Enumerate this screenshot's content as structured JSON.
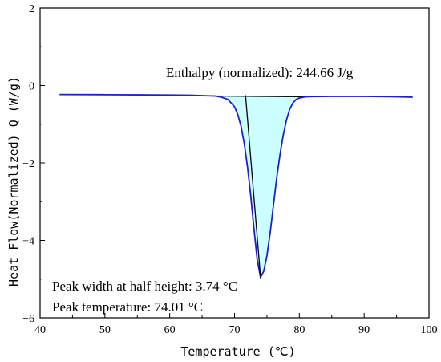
{
  "chart_data": {
    "type": "line",
    "xlabel": "Temperature (℃)",
    "ylabel": "Heat Flow(Normalized) Q (W/g)",
    "xlim": [
      40,
      100
    ],
    "ylim": [
      -6,
      2
    ],
    "xticks": [
      40,
      50,
      60,
      70,
      80,
      90,
      100
    ],
    "yticks": [
      -6,
      -4,
      -2,
      0,
      2
    ],
    "minor_ticks": true,
    "grid": false,
    "legend": "none",
    "series": [
      {
        "color": "#1f1fcc",
        "x": [
          43,
          50,
          55,
          60,
          63,
          65,
          67,
          68,
          69,
          70,
          70.5,
          71,
          71.5,
          72,
          72.5,
          73,
          73.5,
          74.01,
          74.5,
          75,
          75.5,
          76,
          76.5,
          77,
          77.5,
          78,
          78.5,
          79,
          79.5,
          80,
          81,
          82,
          85,
          90,
          95,
          97.5
        ],
        "y": [
          -0.23,
          -0.235,
          -0.24,
          -0.245,
          -0.25,
          -0.26,
          -0.27,
          -0.3,
          -0.36,
          -0.55,
          -0.75,
          -1.05,
          -1.5,
          -2.1,
          -2.85,
          -3.7,
          -4.5,
          -4.95,
          -4.8,
          -4.4,
          -3.8,
          -3.1,
          -2.4,
          -1.8,
          -1.3,
          -0.9,
          -0.62,
          -0.45,
          -0.36,
          -0.32,
          -0.29,
          -0.285,
          -0.28,
          -0.28,
          -0.29,
          -0.3
        ]
      }
    ],
    "baseline": {
      "color": "#000000",
      "x": [
        66.5,
        81
      ],
      "y": [
        -0.27,
        -0.29
      ]
    },
    "shaded_region": {
      "fill": "#ccffff",
      "x_range": [
        66.5,
        81
      ]
    },
    "tangent_line": {
      "color": "#000000",
      "x": [
        71.7,
        74.01
      ],
      "y": [
        -0.25,
        -4.95
      ]
    },
    "annotations": [
      {
        "text": "Enthalpy (normalized): 244.66 J/g"
      },
      {
        "text": "Peak width at half height: 3.74 °C"
      },
      {
        "text": "Peak temperature: 74.01 °C"
      }
    ]
  }
}
